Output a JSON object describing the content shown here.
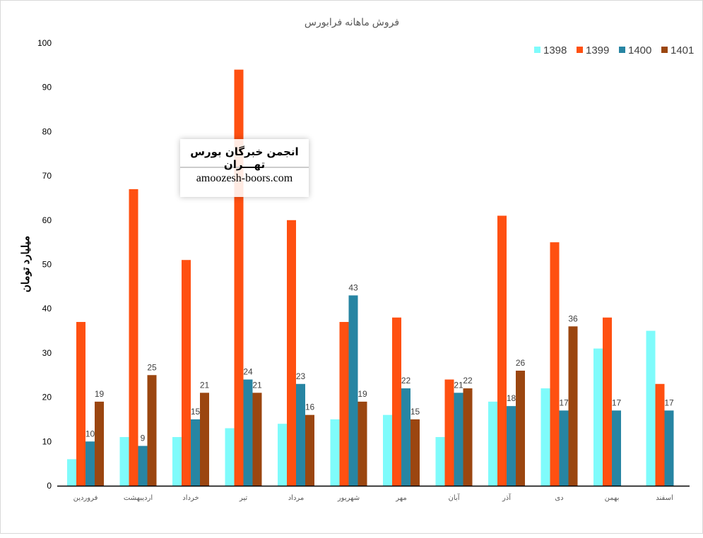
{
  "chart_data": {
    "type": "bar",
    "title": "فروش ماهانه فرابورس",
    "xlabel": "",
    "ylabel": "میلیارد تومان",
    "ylim": [
      0,
      100
    ],
    "yticks": [
      0,
      10,
      20,
      30,
      40,
      50,
      60,
      70,
      80,
      90,
      100
    ],
    "grid": false,
    "legend_position": "top-right",
    "categories": [
      "فروردین",
      "اردیبهشت",
      "خرداد",
      "تیر",
      "مرداد",
      "شهریور",
      "مهر",
      "آبان",
      "آذر",
      "دی",
      "بهمن",
      "اسفند"
    ],
    "series": [
      {
        "name": "1398",
        "color": "#7ffbfb",
        "labels": false,
        "values": [
          6,
          11,
          11,
          13,
          14,
          15,
          16,
          11,
          19,
          22,
          31,
          35
        ]
      },
      {
        "name": "1399",
        "color": "#ff5011",
        "labels": false,
        "values": [
          37,
          67,
          51,
          94,
          60,
          37,
          38,
          24,
          61,
          55,
          38,
          23
        ]
      },
      {
        "name": "1400",
        "color": "#2785a3",
        "labels": true,
        "values": [
          10,
          9,
          15,
          24,
          23,
          43,
          22,
          21,
          18,
          17,
          17,
          17
        ]
      },
      {
        "name": "1401",
        "color": "#9b4610",
        "labels": true,
        "values": [
          19,
          25,
          21,
          21,
          16,
          19,
          15,
          22,
          26,
          36,
          null,
          null
        ]
      }
    ]
  },
  "watermark": {
    "line1": "انجمن خبرگان بورس تهـــران",
    "line2": "amoozesh-boors.com"
  }
}
